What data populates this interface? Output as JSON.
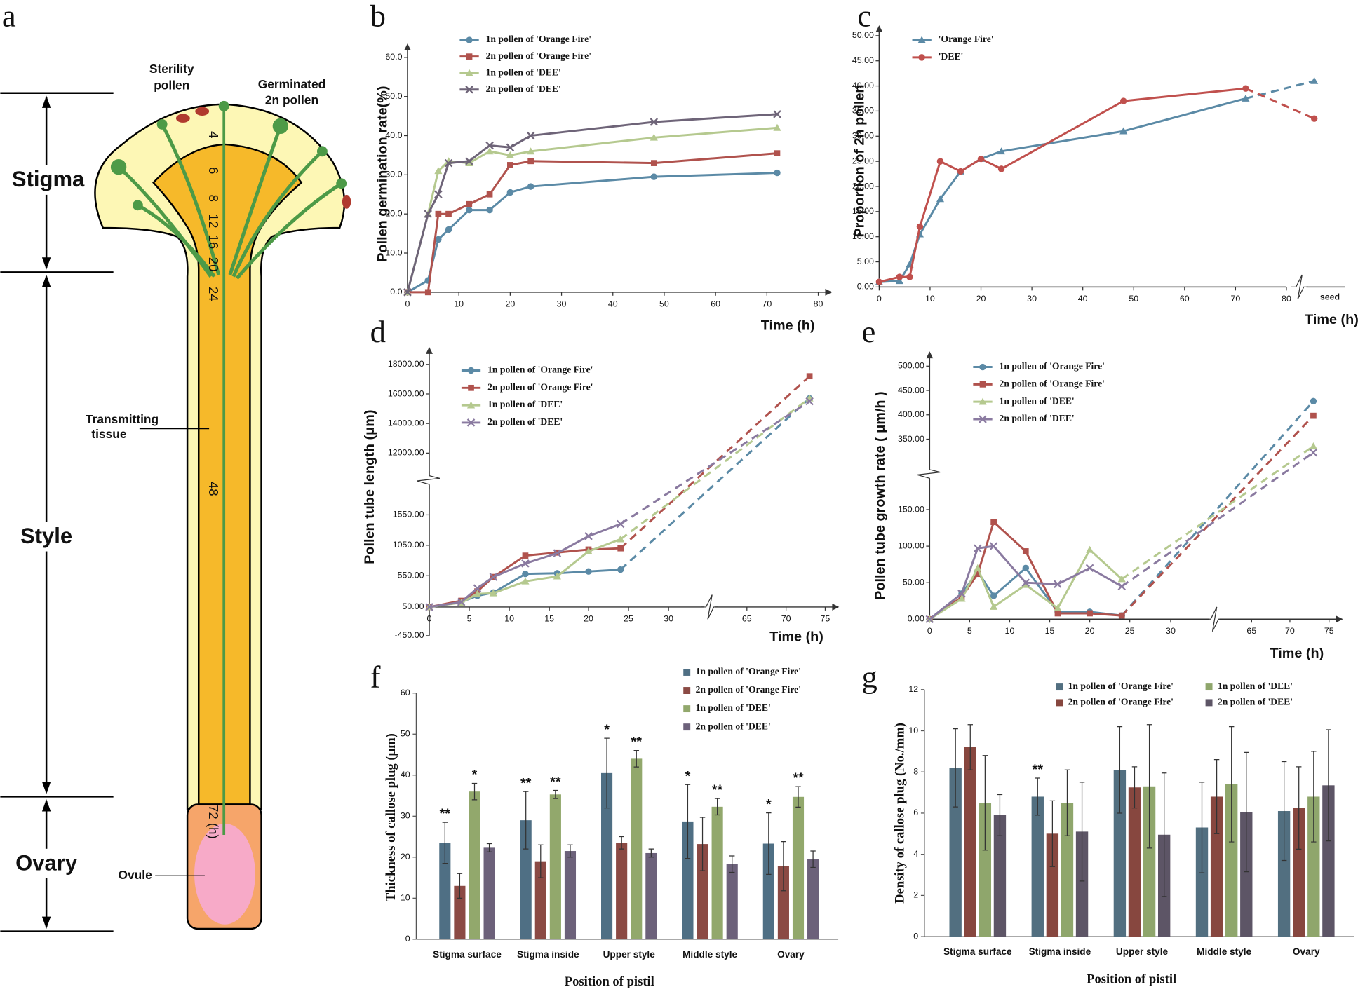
{
  "diagram": {
    "panel": "a",
    "regions": [
      "Stigma",
      "Style",
      "Ovary"
    ],
    "sterility_pollen": [
      "Sterility",
      "pollen"
    ],
    "germinated_pollen": [
      "Germinated",
      "2n pollen"
    ],
    "transmitting_tissue": [
      "Transmitting",
      "tissue"
    ],
    "ovule": "Ovule",
    "time_marks": [
      "4",
      "6",
      "8",
      "12",
      "16",
      "20",
      "24",
      "48",
      "72 (h)"
    ]
  },
  "chart_data": [
    {
      "type": "line",
      "panel": "b",
      "xlabel": "Time (h)",
      "ylabel": "Pollen germination rate(%)",
      "x": [
        0,
        4,
        6,
        8,
        12,
        16,
        20,
        24,
        48,
        72
      ],
      "xlim": [
        0,
        80
      ],
      "xticks": [
        0,
        10,
        20,
        30,
        40,
        50,
        60,
        70,
        80
      ],
      "ylim": [
        0,
        60
      ],
      "yticks": [
        {
          "value": 0,
          "label": "0.0"
        },
        {
          "value": 10,
          "label": "10.0"
        },
        {
          "value": 20,
          "label": "20.0"
        },
        {
          "value": 30,
          "label": "30.0"
        },
        {
          "value": 40,
          "label": "40.0"
        },
        {
          "value": 50,
          "label": "50.0"
        },
        {
          "value": 60,
          "label": "60.0"
        }
      ],
      "series": [
        {
          "name": "1n  pollen of 'Orange Fire'",
          "color": "#5b8aa6",
          "marker": "circle",
          "values": [
            0,
            3,
            13.5,
            16,
            21,
            21,
            25.5,
            27,
            29.5,
            30.5
          ]
        },
        {
          "name": "2n  pollen of 'Orange Fire'",
          "color": "#b0524d",
          "marker": "square",
          "values": [
            0,
            0,
            20,
            20,
            22.5,
            25,
            32.5,
            33.5,
            33,
            35.5
          ]
        },
        {
          "name": "1n  pollen of 'DEE'",
          "color": "#b5c98f",
          "marker": "triangle",
          "values": [
            0,
            20,
            31,
            33.5,
            33,
            36,
            35,
            36,
            39.5,
            42
          ]
        },
        {
          "name": "2n  pollen of 'DEE'",
          "color": "#6e6478",
          "marker": "x",
          "values": [
            0,
            20,
            25,
            33,
            33.5,
            37.5,
            37,
            40,
            43.5,
            45.5
          ]
        }
      ]
    },
    {
      "type": "line",
      "panel": "c",
      "xlabel": "Time (h)",
      "ylabel": "Proportion of 2n pollen",
      "x": [
        0,
        4,
        6,
        8,
        12,
        16,
        20,
        24,
        48,
        72
      ],
      "xlim": [
        0,
        80
      ],
      "xticks": [
        0,
        10,
        20,
        30,
        40,
        50,
        60,
        70,
        80
      ],
      "seed_label": "seed",
      "ylim": [
        0,
        50
      ],
      "yticks": [
        {
          "value": 0,
          "label": "0.00"
        },
        {
          "value": 5,
          "label": "5.00"
        },
        {
          "value": 10,
          "label": "10.00"
        },
        {
          "value": 15,
          "label": "15.00"
        },
        {
          "value": 20,
          "label": "20.00"
        },
        {
          "value": 25,
          "label": "25.00"
        },
        {
          "value": 30,
          "label": "30.00"
        },
        {
          "value": 35,
          "label": "35.00"
        },
        {
          "value": 40,
          "label": "40.00"
        },
        {
          "value": 45,
          "label": "45.00"
        },
        {
          "value": 50,
          "label": "50.00"
        }
      ],
      "series": [
        {
          "name": "'Orange Fire'",
          "color": "#5b8aa6",
          "marker": "triangle",
          "values": [
            1,
            1.2,
            4.5,
            10.5,
            17.5,
            23,
            25.5,
            27,
            31,
            37.5
          ],
          "seed_value": 41
        },
        {
          "name": "'DEE'",
          "color": "#c0504d",
          "marker": "circle",
          "values": [
            1,
            2,
            2,
            12,
            25,
            23,
            25.5,
            23.5,
            37,
            39.5
          ],
          "seed_value": 33.5
        }
      ]
    },
    {
      "type": "line",
      "panel": "d",
      "xlabel": "Time (h)",
      "ylabel": "Pollen tube length  (μm)",
      "last_segment_dashed": true,
      "x": [
        0,
        4,
        6,
        8,
        12,
        16,
        20,
        24,
        73
      ],
      "xlim": [
        0,
        75
      ],
      "xticks": [
        0,
        5,
        10,
        15,
        20,
        25,
        30,
        65,
        70,
        75
      ],
      "ylim": [
        -450,
        18000
      ],
      "yticks": [
        {
          "value": -450,
          "label": "-450.00"
        },
        {
          "value": 50,
          "label": "50.00"
        },
        {
          "value": 550,
          "label": "550.00"
        },
        {
          "value": 1050,
          "label": "1050.00"
        },
        {
          "value": 1550,
          "label": "1550.00"
        },
        {
          "value": 12000,
          "label": "12000.00"
        },
        {
          "value": 14000,
          "label": "14000.00"
        },
        {
          "value": 16000,
          "label": "16000.00"
        },
        {
          "value": 18000,
          "label": "18000.00"
        }
      ],
      "series": [
        {
          "name": "1n  pollen of 'Orange Fire'",
          "color": "#5b8aa6",
          "marker": "circle",
          "values": [
            50,
            130,
            230,
            280,
            580,
            590,
            620,
            650,
            15700
          ]
        },
        {
          "name": "2n  pollen of 'Orange Fire'",
          "color": "#b0524d",
          "marker": "square",
          "values": [
            50,
            150,
            300,
            530,
            880,
            930,
            980,
            1000,
            17200
          ]
        },
        {
          "name": "1n  pollen of 'DEE'",
          "color": "#b5c98f",
          "marker": "triangle",
          "values": [
            50,
            120,
            260,
            270,
            460,
            540,
            950,
            1150,
            15700
          ]
        },
        {
          "name": "2n  pollen of 'DEE'",
          "color": "#8a7aa0",
          "marker": "x",
          "values": [
            50,
            130,
            350,
            530,
            750,
            920,
            1200,
            1400,
            15500
          ]
        }
      ]
    },
    {
      "type": "line",
      "panel": "e",
      "xlabel": "Time (h)",
      "ylabel": "Pollen tube growth rate ( μm/h )",
      "last_segment_dashed": true,
      "x": [
        0,
        4,
        6,
        8,
        12,
        16,
        20,
        24,
        73
      ],
      "xlim": [
        0,
        75
      ],
      "xticks": [
        0,
        5,
        10,
        15,
        20,
        25,
        30,
        65,
        70,
        75
      ],
      "ylim": [
        0,
        500
      ],
      "yticks": [
        {
          "value": 0,
          "label": "0.00"
        },
        {
          "value": 50,
          "label": "50.00"
        },
        {
          "value": 100,
          "label": "100.00"
        },
        {
          "value": 150,
          "label": "150.00"
        },
        {
          "value": 350,
          "label": "350.00"
        },
        {
          "value": 400,
          "label": "400.00"
        },
        {
          "value": 450,
          "label": "450.00"
        },
        {
          "value": 500,
          "label": "500.00"
        }
      ],
      "series": [
        {
          "name": "1n  pollen of 'Orange Fire'",
          "color": "#5b8aa6",
          "marker": "circle",
          "values": [
            0,
            35,
            65,
            32,
            70,
            10,
            10,
            5,
            428
          ]
        },
        {
          "name": "2n  pollen of 'Orange Fire'",
          "color": "#b0524d",
          "marker": "square",
          "values": [
            0,
            30,
            62,
            133,
            93,
            8,
            8,
            5,
            398
          ]
        },
        {
          "name": "1n  pollen of 'DEE'",
          "color": "#b5c98f",
          "marker": "triangle",
          "values": [
            0,
            28,
            70,
            17,
            47,
            15,
            95,
            55,
            330
          ]
        },
        {
          "name": "2n  pollen of 'DEE'",
          "color": "#8a7aa0",
          "marker": "x",
          "values": [
            0,
            35,
            97,
            100,
            50,
            48,
            70,
            45,
            312
          ]
        }
      ]
    },
    {
      "type": "bar",
      "panel": "f",
      "xlabel": "Position of pistil",
      "ylabel": "Thickness of callose plug (μm)",
      "categories": [
        "Stigma surface",
        "Stigma inside",
        "Upper style",
        "Middle style",
        "Ovary"
      ],
      "ylim": [
        0,
        60
      ],
      "yticks": [
        0,
        10,
        20,
        30,
        40,
        50,
        60
      ],
      "series": [
        {
          "name": "1n  pollen of 'Orange Fire'",
          "color": "#4f6f84",
          "values": [
            23.5,
            29,
            40.5,
            28.7,
            23.3
          ],
          "errors": [
            5,
            7,
            8.5,
            9,
            7.5
          ],
          "significance": [
            "**",
            "**",
            "*",
            "*",
            "*"
          ]
        },
        {
          "name": "2n  pollen of 'Orange Fire'",
          "color": "#8b4a44",
          "values": [
            13,
            19,
            23.5,
            23.2,
            17.8
          ],
          "errors": [
            3,
            4,
            1.5,
            6.5,
            6
          ]
        },
        {
          "name": "1n  pollen of 'DEE'",
          "color": "#92a86c",
          "values": [
            36,
            35.3,
            44,
            32.3,
            34.7
          ],
          "errors": [
            2,
            1,
            2,
            2,
            2.5
          ],
          "significance": [
            "*",
            "**",
            "**",
            "**",
            "**"
          ]
        },
        {
          "name": "2n  pollen of 'DEE'",
          "color": "#6c617a",
          "values": [
            22.3,
            21.5,
            21,
            18.3,
            19.5
          ],
          "errors": [
            1,
            1.5,
            1,
            2,
            2
          ]
        }
      ]
    },
    {
      "type": "bar",
      "panel": "g",
      "xlabel": "Position of pistil",
      "ylabel": "Density of callose plug (No./mm)",
      "categories": [
        "Stigma surface",
        "Stigma inside",
        "Upper style",
        "Middle style",
        "Ovary"
      ],
      "ylim": [
        0,
        12
      ],
      "yticks": [
        0,
        2,
        4,
        6,
        8,
        10,
        12
      ],
      "series": [
        {
          "name": "1n  pollen of 'Orange Fire'",
          "color": "#526f80",
          "values": [
            8.2,
            6.8,
            8.1,
            5.3,
            6.1
          ],
          "errors": [
            1.9,
            0.9,
            2.1,
            2.2,
            2.4
          ],
          "significance": [
            null,
            "**",
            null,
            null,
            null
          ]
        },
        {
          "name": "2n  pollen of 'Orange Fire'",
          "color": "#87473f",
          "values": [
            9.2,
            5.0,
            7.25,
            6.8,
            6.25
          ],
          "errors": [
            1.1,
            1.6,
            1.0,
            1.8,
            2.0
          ]
        },
        {
          "name": "1n  pollen of 'DEE'",
          "color": "#8fa66c",
          "values": [
            6.5,
            6.5,
            7.3,
            7.4,
            6.8
          ],
          "errors": [
            2.3,
            1.6,
            3.0,
            2.8,
            2.2
          ]
        },
        {
          "name": "2n  pollen of 'DEE'",
          "color": "#5d5566",
          "values": [
            5.9,
            5.1,
            4.95,
            6.05,
            7.35
          ],
          "errors": [
            1,
            2.4,
            3.0,
            2.9,
            2.7
          ]
        }
      ]
    }
  ]
}
